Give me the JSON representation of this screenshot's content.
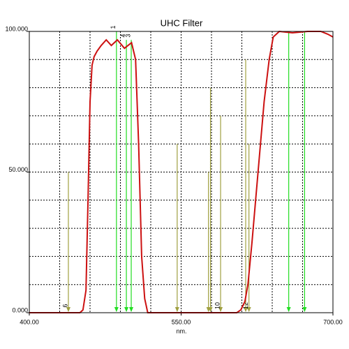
{
  "chart_data": {
    "type": "line",
    "title": "UHC Filter",
    "x_label": "nm.",
    "x": [
      400,
      450,
      453,
      456,
      458,
      460,
      462,
      464,
      467,
      471,
      476,
      481,
      487,
      494,
      501,
      505,
      508,
      511,
      514,
      517,
      550,
      605,
      609,
      613,
      616,
      620,
      626,
      632,
      637,
      641,
      647,
      660,
      675,
      688,
      695,
      700
    ],
    "values": [
      0,
      0,
      1,
      8,
      40,
      75,
      88,
      91,
      93,
      95,
      97,
      95,
      97,
      94,
      96,
      90,
      60,
      20,
      5,
      0,
      0,
      0,
      1,
      4,
      10,
      25,
      50,
      75,
      90,
      98,
      100,
      99.5,
      100,
      100,
      99,
      98
    ],
    "color": "#cc1111",
    "xlim": [
      400,
      700
    ],
    "xticks": [
      {
        "value": 400,
        "label": "400.00"
      },
      {
        "value": 550,
        "label": "550.00"
      },
      {
        "value": 700,
        "label": "700.00"
      }
    ],
    "ylim": [
      0,
      100
    ],
    "yticks": [
      {
        "value": 0,
        "label": "0.000"
      },
      {
        "value": 50,
        "label": "50.000"
      },
      {
        "value": 100,
        "label": "100.000"
      }
    ],
    "xgrid": [
      430,
      460,
      490,
      520,
      550,
      580,
      610,
      640,
      670
    ],
    "ygrid": [
      10,
      20,
      30,
      40,
      50,
      60,
      70,
      80,
      90
    ],
    "markers": [
      {
        "x": 438.6,
        "height": 50,
        "color": "#a0a040",
        "label": "6"
      },
      {
        "x": 486.1,
        "height": 100,
        "color": "#22dd22",
        "label": "1"
      },
      {
        "x": 495.9,
        "height": 97,
        "color": "#22dd22",
        "label": "4"
      },
      {
        "x": 500.7,
        "height": 97,
        "color": "#22dd22",
        "label": "3"
      },
      {
        "x": 546.1,
        "height": 60,
        "color": "#a0a040",
        "label": null
      },
      {
        "x": 577,
        "height": 50,
        "color": "#a0a040",
        "label": null
      },
      {
        "x": 579,
        "height": 80,
        "color": "#a0a040",
        "label": null
      },
      {
        "x": 589,
        "height": 70,
        "color": "#a0a040",
        "label": "10"
      },
      {
        "x": 613.8,
        "height": 90,
        "color": "#a0a040",
        "label": null
      },
      {
        "x": 617,
        "height": 60,
        "color": "#a0a040",
        "label": "12"
      },
      {
        "x": 656.3,
        "height": 100,
        "color": "#22dd22",
        "label": null
      },
      {
        "x": 672,
        "height": 100,
        "color": "#22dd22",
        "label": null
      }
    ]
  }
}
